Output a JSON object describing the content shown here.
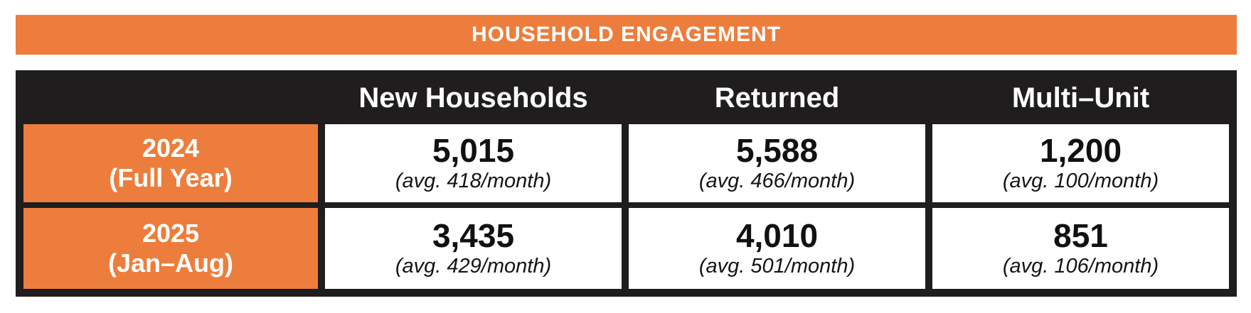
{
  "title": "HOUSEHOLD ENGAGEMENT",
  "colors": {
    "accent_orange": "#ED7D3C",
    "table_black": "#1F1D1E",
    "cell_white": "#FFFFFF",
    "title_text": "#FFFFFF"
  },
  "table": {
    "column_headers": [
      "New Households",
      "Returned",
      "Multi–Unit"
    ],
    "rows": [
      {
        "label_line1": "2024",
        "label_line2": "(Full Year)",
        "cells": [
          {
            "value": "5,015",
            "avg": "(avg. 418/month)"
          },
          {
            "value": "5,588",
            "avg": "(avg. 466/month)"
          },
          {
            "value": "1,200",
            "avg": "(avg. 100/month)"
          }
        ]
      },
      {
        "label_line1": "2025",
        "label_line2": "(Jan–Aug)",
        "cells": [
          {
            "value": "3,435",
            "avg": "(avg. 429/month)"
          },
          {
            "value": "4,010",
            "avg": "(avg. 501/month)"
          },
          {
            "value": "851",
            "avg": "(avg. 106/month)"
          }
        ]
      }
    ]
  },
  "chart_data": {
    "type": "table",
    "title": "HOUSEHOLD ENGAGEMENT",
    "columns": [
      "New Households",
      "Returned",
      "Multi–Unit"
    ],
    "rows": [
      {
        "label": "2024 (Full Year)",
        "values": [
          5015,
          5588,
          1200
        ],
        "monthly_averages": [
          418,
          466,
          100
        ]
      },
      {
        "label": "2025 (Jan–Aug)",
        "values": [
          3435,
          4010,
          851
        ],
        "monthly_averages": [
          429,
          501,
          106
        ]
      }
    ]
  }
}
